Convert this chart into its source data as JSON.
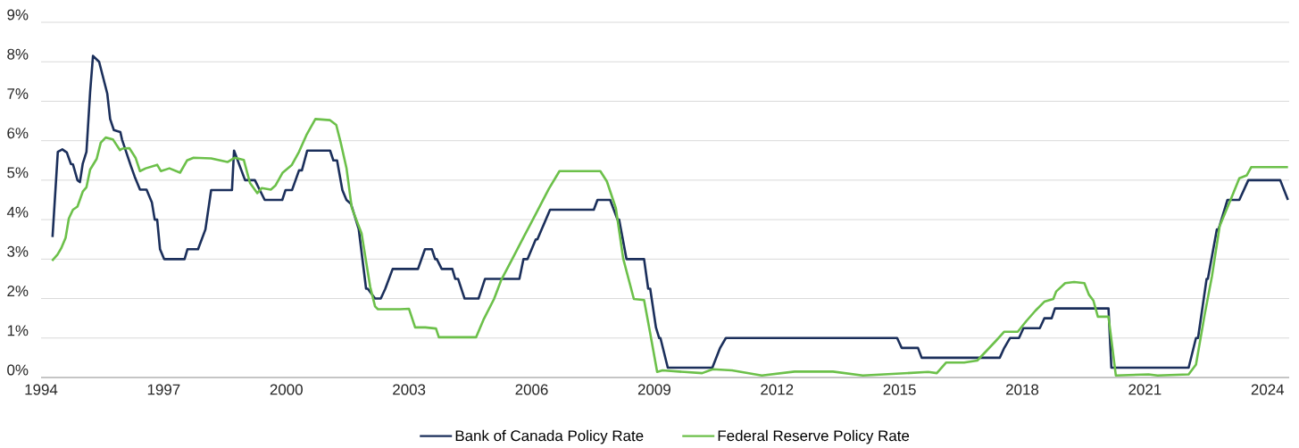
{
  "chart_data": {
    "type": "line",
    "xlim": [
      1994,
      2024.53
    ],
    "xticks": [
      1994,
      1997,
      2000,
      2003,
      2006,
      2009,
      2012,
      2015,
      2018,
      2021,
      2024
    ],
    "ylim": [
      0,
      9
    ],
    "yticks": [
      {
        "value": 0,
        "label": "0%"
      },
      {
        "value": 1,
        "label": "1%"
      },
      {
        "value": 2,
        "label": "2%"
      },
      {
        "value": 3,
        "label": "3%"
      },
      {
        "value": 4,
        "label": "4%"
      },
      {
        "value": 5,
        "label": "5%"
      },
      {
        "value": 6,
        "label": "6%"
      },
      {
        "value": 7,
        "label": "7%"
      },
      {
        "value": 8,
        "label": "8%"
      },
      {
        "value": 9,
        "label": "9%"
      }
    ],
    "grid": "y",
    "legend": "bottom",
    "marker": "none",
    "line_style": "solid",
    "series": [
      {
        "name": "Bank of Canada Policy Rate",
        "color": "#1b2f5b",
        "x": [
          1994.28,
          1994.41,
          1994.52,
          1994.63,
          1994.73,
          1994.78,
          1994.89,
          1994.95,
          1995.02,
          1995.11,
          1995.2,
          1995.27,
          1995.42,
          1995.62,
          1995.69,
          1995.78,
          1995.94,
          1995.98,
          1996.2,
          1996.29,
          1996.42,
          1996.58,
          1996.71,
          1996.78,
          1996.84,
          1996.91,
          1997.01,
          1997.51,
          1997.58,
          1997.84,
          1998.02,
          1998.16,
          1998.67,
          1998.72,
          1998.99,
          1999.23,
          1999.47,
          1999.9,
          1999.98,
          2000.14,
          2000.31,
          2000.38,
          2000.51,
          2001.07,
          2001.15,
          2001.24,
          2001.37,
          2001.47,
          2001.58,
          2001.77,
          2001.95,
          2001.99,
          2002.17,
          2002.31,
          2002.42,
          2002.6,
          2003.22,
          2003.39,
          2003.56,
          2003.64,
          2003.68,
          2003.8,
          2004.06,
          2004.13,
          2004.2,
          2004.36,
          2004.7,
          2004.86,
          2005.7,
          2005.8,
          2005.9,
          2006.1,
          2006.14,
          2006.28,
          2006.45,
          2007.52,
          2007.61,
          2007.92,
          2008.1,
          2008.14,
          2008.32,
          2008.75,
          2008.85,
          2008.9,
          2009.04,
          2009.12,
          2009.15,
          2009.33,
          2010.39,
          2010.42,
          2010.61,
          2010.75,
          2014.94,
          2015.05,
          2015.45,
          2015.54,
          2017.45,
          2017.56,
          2017.7,
          2017.92,
          2018.03,
          2018.43,
          2018.54,
          2018.72,
          2018.8,
          2020.11,
          2020.18,
          2022.07,
          2022.25,
          2022.3,
          2022.51,
          2022.54,
          2022.76,
          2022.8,
          2023.02,
          2023.31,
          2023.53,
          2024.31,
          2024.5
        ],
        "values": [
          3.56,
          5.72,
          5.78,
          5.7,
          5.41,
          5.4,
          5.0,
          4.95,
          5.42,
          5.72,
          7.23,
          8.15,
          8.0,
          7.19,
          6.55,
          6.27,
          6.22,
          6.03,
          5.35,
          5.09,
          4.76,
          4.76,
          4.44,
          4.0,
          4.0,
          3.25,
          3.0,
          3.0,
          3.25,
          3.25,
          3.75,
          4.75,
          4.75,
          5.75,
          5.0,
          5.0,
          4.5,
          4.5,
          4.75,
          4.75,
          5.25,
          5.25,
          5.75,
          5.75,
          5.5,
          5.5,
          4.75,
          4.5,
          4.4,
          3.76,
          2.25,
          2.25,
          2.0,
          2.0,
          2.25,
          2.75,
          2.75,
          3.25,
          3.25,
          3.0,
          3.0,
          2.75,
          2.75,
          2.5,
          2.5,
          2.0,
          2.0,
          2.5,
          2.5,
          3.0,
          3.0,
          3.5,
          3.5,
          3.84,
          4.25,
          4.25,
          4.5,
          4.5,
          4.0,
          4.0,
          3.0,
          3.0,
          2.25,
          2.25,
          1.27,
          1.0,
          1.0,
          0.25,
          0.25,
          0.25,
          0.75,
          1.0,
          1.0,
          0.75,
          0.75,
          0.5,
          0.5,
          0.75,
          1.0,
          1.0,
          1.25,
          1.25,
          1.5,
          1.5,
          1.75,
          1.75,
          0.25,
          0.25,
          1.0,
          1.0,
          2.5,
          2.5,
          3.75,
          3.75,
          4.5,
          4.5,
          5.0,
          5.0,
          4.5
        ]
      },
      {
        "name": "Federal Reserve Policy Rate",
        "color": "#6cc04a",
        "x": [
          1994.27,
          1994.4,
          1994.49,
          1994.6,
          1994.68,
          1994.78,
          1994.89,
          1995.02,
          1995.11,
          1995.2,
          1995.36,
          1995.46,
          1995.58,
          1995.76,
          1995.93,
          1995.99,
          1996.16,
          1996.31,
          1996.42,
          1996.56,
          1996.84,
          1996.93,
          1997.14,
          1997.4,
          1997.57,
          1997.73,
          1998.16,
          1998.56,
          1998.74,
          1998.96,
          1999.11,
          1999.29,
          1999.4,
          1999.62,
          1999.73,
          1999.91,
          2000.13,
          2000.31,
          2000.49,
          2000.71,
          2001.07,
          2001.22,
          2001.33,
          2001.47,
          2001.6,
          2001.84,
          2002.05,
          2002.17,
          2002.24,
          2002.46,
          2002.78,
          2003.0,
          2003.15,
          2003.4,
          2003.66,
          2003.73,
          2004.64,
          2004.82,
          2005.08,
          2005.26,
          2005.51,
          2005.81,
          2006.1,
          2006.42,
          2006.68,
          2007.68,
          2007.84,
          2008.06,
          2008.24,
          2008.5,
          2008.75,
          2008.9,
          2009.07,
          2009.2,
          2009.73,
          2010.17,
          2010.43,
          2010.9,
          2011.63,
          2012.43,
          2013.37,
          2014.1,
          2015.7,
          2015.91,
          2016.14,
          2016.58,
          2016.9,
          2017.12,
          2017.34,
          2017.56,
          2017.89,
          2018.1,
          2018.32,
          2018.54,
          2018.76,
          2018.83,
          2019.05,
          2019.27,
          2019.52,
          2019.63,
          2019.74,
          2019.85,
          2020.11,
          2020.29,
          2021.09,
          2021.31,
          2022.07,
          2022.25,
          2022.46,
          2022.64,
          2022.83,
          2023.12,
          2023.31,
          2023.49,
          2023.6,
          2024.5
        ],
        "values": [
          2.96,
          3.11,
          3.27,
          3.54,
          4.03,
          4.25,
          4.33,
          4.71,
          4.82,
          5.27,
          5.54,
          5.95,
          6.08,
          6.03,
          5.76,
          5.8,
          5.81,
          5.57,
          5.23,
          5.3,
          5.39,
          5.23,
          5.3,
          5.19,
          5.5,
          5.57,
          5.55,
          5.46,
          5.57,
          5.51,
          4.93,
          4.67,
          4.8,
          4.76,
          4.86,
          5.19,
          5.38,
          5.72,
          6.14,
          6.55,
          6.52,
          6.4,
          5.95,
          5.31,
          4.3,
          3.65,
          2.3,
          1.8,
          1.73,
          1.73,
          1.73,
          1.74,
          1.27,
          1.27,
          1.24,
          1.02,
          1.02,
          1.46,
          1.99,
          2.48,
          2.97,
          3.57,
          4.14,
          4.78,
          5.23,
          5.23,
          4.97,
          4.29,
          3.01,
          1.99,
          1.96,
          1.12,
          0.14,
          0.18,
          0.14,
          0.11,
          0.21,
          0.18,
          0.05,
          0.15,
          0.15,
          0.05,
          0.14,
          0.11,
          0.38,
          0.38,
          0.43,
          0.67,
          0.91,
          1.16,
          1.16,
          1.43,
          1.69,
          1.92,
          1.99,
          2.18,
          2.39,
          2.42,
          2.39,
          2.1,
          1.95,
          1.54,
          1.54,
          0.05,
          0.08,
          0.05,
          0.08,
          0.33,
          1.58,
          2.56,
          3.84,
          4.56,
          5.05,
          5.12,
          5.33,
          5.33
        ]
      }
    ]
  }
}
